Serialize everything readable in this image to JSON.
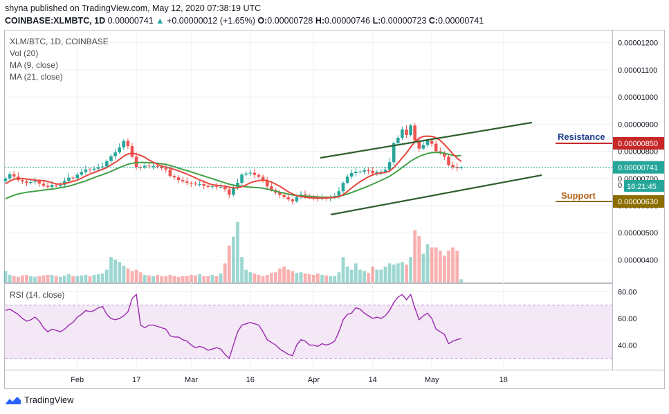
{
  "header": {
    "published_line": "shyna published on TradingView.com, May 12, 2020 07:38:19 UTC",
    "symbol": "COINBASE:XLMBTC, 1D",
    "last": "0.00000741",
    "change_arrow": "▲",
    "change": "+0.00000012 (+1.65%)",
    "o_label": "O:",
    "o_value": "0.00000728",
    "h_label": "H:",
    "h_value": "0.00000746",
    "l_label": "L:",
    "l_value": "0.00000723",
    "c_label": "C:",
    "c_value": "0.00000741"
  },
  "legend": {
    "title": "XLM/BTC, 1D, COINBASE",
    "vol": "Vol (20)",
    "ma9": "MA (9, close)",
    "ma21": "MA (21, close)"
  },
  "rsi_legend": "RSI (14, close)",
  "annotations": {
    "resistance_label": "Resistance",
    "resistance_value": "0.00000850",
    "support_label": "Support",
    "support_value": "0.00000630",
    "last_price_tag": "0.00000741",
    "countdown_tag": "16:21:45",
    "countdown_prefix": "0."
  },
  "colors": {
    "up": "#26a69a",
    "down": "#ef5350",
    "ma9": "#e8453c",
    "ma21": "#43a047",
    "channel": "#2e5d2e",
    "rsi": "#9c27b0",
    "resistance": "#c62828",
    "support": "#8b6d00"
  },
  "footer": {
    "brand": "TradingView"
  },
  "chart_data": [
    {
      "type": "candlestick",
      "title": "XLM/BTC, 1D, COINBASE",
      "x_tick_labels": [
        "Feb",
        "17",
        "Mar",
        "16",
        "Apr",
        "14",
        "May",
        "18"
      ],
      "x_tick_index": [
        17,
        31,
        44,
        58,
        73,
        87,
        101,
        118
      ],
      "y_tick_labels": [
        "0.00001200",
        "0.00001100",
        "0.00001000",
        "0.00000900",
        "0.00000800",
        "0.00000700",
        "0.00000600",
        "0.00000500",
        "0.00000400"
      ],
      "y_tick_values": [
        1200,
        1100,
        1000,
        900,
        800,
        700,
        600,
        500,
        400
      ],
      "y_unit_note": "values ×1e-8 BTC",
      "ylim": [
        317,
        1245
      ],
      "close": [
        700,
        716,
        707,
        694,
        689,
        684,
        687,
        690,
        681,
        673,
        669,
        676,
        673,
        677,
        691,
        703,
        701,
        714,
        724,
        733,
        732,
        736,
        741,
        744,
        764,
        782,
        796,
        814,
        838,
        819,
        780,
        742,
        741,
        747,
        745,
        745,
        743,
        738,
        733,
        709,
        704,
        694,
        689,
        684,
        681,
        679,
        679,
        673,
        669,
        671,
        669,
        669,
        660,
        640,
        667,
        684,
        714,
        718,
        721,
        713,
        706,
        693,
        671,
        658,
        648,
        639,
        631,
        623,
        616,
        632,
        641,
        637,
        630,
        628,
        625,
        629,
        627,
        629,
        635,
        653,
        684,
        707,
        720,
        725,
        725,
        730,
        728,
        719,
        724,
        725,
        732,
        760,
        830,
        850,
        880,
        860,
        895,
        840,
        810,
        823,
        839,
        828,
        800,
        795,
        780,
        750,
        742,
        738,
        741
      ],
      "ma9": [
        680,
        690,
        697,
        700,
        700,
        698,
        696,
        694,
        693,
        692,
        689,
        684,
        680,
        679,
        681,
        685,
        689,
        694,
        701,
        709,
        716,
        722,
        728,
        734,
        740,
        750,
        759,
        770,
        782,
        790,
        793,
        790,
        785,
        778,
        768,
        760,
        752,
        745,
        742,
        738,
        733,
        728,
        722,
        716,
        709,
        702,
        695,
        688,
        682,
        677,
        675,
        673,
        672,
        668,
        665,
        666,
        670,
        676,
        684,
        689,
        692,
        694,
        692,
        687,
        679,
        671,
        661,
        651,
        643,
        637,
        633,
        631,
        629,
        628,
        628,
        627,
        628,
        629,
        630,
        633,
        640,
        652,
        665,
        677,
        688,
        697,
        706,
        713,
        718,
        720,
        722,
        727,
        740,
        757,
        776,
        794,
        815,
        835,
        848,
        855,
        856,
        855,
        850,
        840,
        825,
        808,
        790,
        775,
        762
      ],
      "ma21": [
        625,
        632,
        638,
        643,
        646,
        649,
        651,
        653,
        655,
        657,
        659,
        661,
        663,
        666,
        669,
        672,
        676,
        681,
        686,
        691,
        697,
        703,
        709,
        714,
        720,
        726,
        733,
        740,
        746,
        752,
        756,
        758,
        759,
        759,
        758,
        757,
        756,
        754,
        752,
        748,
        743,
        738,
        733,
        729,
        724,
        719,
        714,
        709,
        704,
        699,
        694,
        689,
        684,
        679,
        675,
        673,
        671,
        669,
        668,
        667,
        666,
        664,
        661,
        657,
        653,
        649,
        646,
        642,
        639,
        637,
        636,
        635,
        634,
        633,
        632,
        631,
        631,
        631,
        632,
        634,
        638,
        643,
        648,
        654,
        660,
        666,
        672,
        679,
        686,
        693,
        700,
        708,
        718,
        729,
        741,
        752,
        764,
        773,
        781,
        787,
        792,
        795,
        796,
        795,
        793,
        789,
        785,
        783,
        785
      ],
      "volume_scaled": [
        0.18,
        0.12,
        0.1,
        0.09,
        0.11,
        0.12,
        0.1,
        0.09,
        0.1,
        0.11,
        0.12,
        0.12,
        0.1,
        0.09,
        0.11,
        0.13,
        0.1,
        0.1,
        0.11,
        0.12,
        0.1,
        0.12,
        0.13,
        0.14,
        0.2,
        0.4,
        0.36,
        0.32,
        0.26,
        0.22,
        0.18,
        0.2,
        0.16,
        0.12,
        0.11,
        0.1,
        0.12,
        0.1,
        0.1,
        0.12,
        0.1,
        0.09,
        0.1,
        0.1,
        0.12,
        0.11,
        0.13,
        0.1,
        0.1,
        0.12,
        0.1,
        0.14,
        0.3,
        0.58,
        0.72,
        0.95,
        0.4,
        0.2,
        0.16,
        0.14,
        0.12,
        0.1,
        0.12,
        0.15,
        0.16,
        0.22,
        0.25,
        0.2,
        0.18,
        0.15,
        0.16,
        0.14,
        0.13,
        0.12,
        0.14,
        0.12,
        0.11,
        0.1,
        0.1,
        0.16,
        0.4,
        0.25,
        0.2,
        0.3,
        0.2,
        0.18,
        0.15,
        0.25,
        0.2,
        0.2,
        0.25,
        0.3,
        0.28,
        0.3,
        0.32,
        0.28,
        0.4,
        0.82,
        0.73,
        0.45,
        0.6,
        0.55,
        0.55,
        0.5,
        0.42,
        0.5,
        0.55,
        0.5,
        0.05
      ]
    },
    {
      "type": "line",
      "title": "RSI (14, close)",
      "y_tick_labels": [
        "80.00",
        "60.00",
        "40.00"
      ],
      "y_tick_values": [
        80,
        60,
        40
      ],
      "band": [
        30,
        70
      ],
      "ylim": [
        22,
        86
      ],
      "values": [
        66,
        67,
        65,
        63,
        60,
        58,
        59,
        61,
        58,
        53,
        50,
        52,
        51,
        50,
        52,
        55,
        57,
        61,
        63,
        66,
        65,
        66,
        68,
        69,
        63,
        60,
        59,
        60,
        62,
        65,
        75,
        78,
        55,
        53,
        55,
        55,
        54,
        53,
        52,
        47,
        46,
        46,
        44,
        43,
        40,
        38,
        39,
        38,
        36,
        37,
        38,
        37,
        33,
        30,
        40,
        50,
        55,
        56,
        57,
        56,
        55,
        50,
        44,
        42,
        40,
        37,
        35,
        33,
        32,
        40,
        44,
        43,
        40,
        40,
        39,
        41,
        40,
        41,
        43,
        50,
        59,
        63,
        64,
        68,
        67,
        64,
        62,
        60,
        61,
        60,
        62,
        66,
        72,
        76,
        78,
        74,
        78,
        68,
        59,
        62,
        64,
        60,
        52,
        50,
        48,
        41,
        43,
        44,
        45
      ]
    }
  ]
}
